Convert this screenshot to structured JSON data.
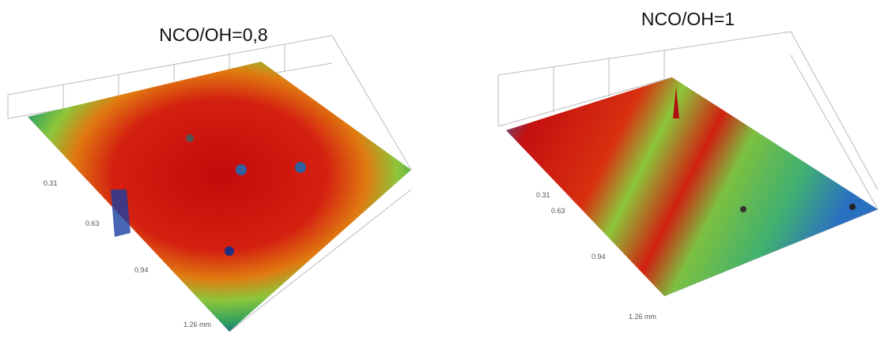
{
  "panels": [
    {
      "title": "NCO/OH=0,8",
      "axis_labels": [
        "0.31",
        "0.63",
        "0.94",
        "1.26 mm"
      ]
    },
    {
      "title": "NCO/OH=1",
      "axis_labels": [
        "0.31",
        "0.63",
        "0.94",
        "1.26 mm"
      ]
    }
  ]
}
